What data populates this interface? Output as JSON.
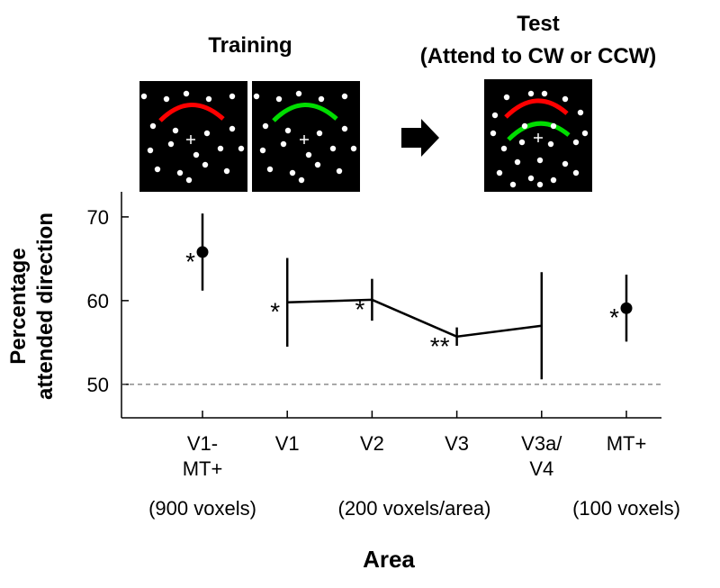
{
  "stimulus": {
    "training_label": "Training",
    "test_label": [
      "Test",
      "(Attend to CW or CCW)"
    ]
  },
  "chart_data": {
    "type": "errorbar",
    "ylabel": [
      "Percentage",
      "attended direction"
    ],
    "xlabel": "Area",
    "categories": [
      "V1-\nMT+",
      "V1",
      "V2",
      "V3",
      "V3a/\nV4",
      "MT+"
    ],
    "groups": [
      {
        "label": "(900 voxels)",
        "from": 0,
        "to": 0
      },
      {
        "label": "(200 voxels/area)",
        "from": 1,
        "to": 4
      },
      {
        "label": "(100 voxels)",
        "from": 5,
        "to": 5
      }
    ],
    "series": [
      {
        "style": "dot",
        "color": "#000000",
        "values": [
          65.8,
          null,
          null,
          null,
          null,
          59.1
        ],
        "errors": [
          4.6,
          null,
          null,
          null,
          null,
          4.0
        ],
        "significance": [
          "*",
          null,
          null,
          null,
          null,
          "*"
        ]
      },
      {
        "style": "line",
        "color": "#000000",
        "values": [
          null,
          59.8,
          60.1,
          55.7,
          57.0,
          null
        ],
        "errors": [
          null,
          5.3,
          2.5,
          1.1,
          6.4,
          null
        ],
        "significance": [
          null,
          "*",
          "*",
          "**",
          null,
          null
        ]
      }
    ],
    "reference_line": 50,
    "ylim": [
      46,
      73
    ],
    "yticks": [
      50,
      60,
      70
    ]
  }
}
